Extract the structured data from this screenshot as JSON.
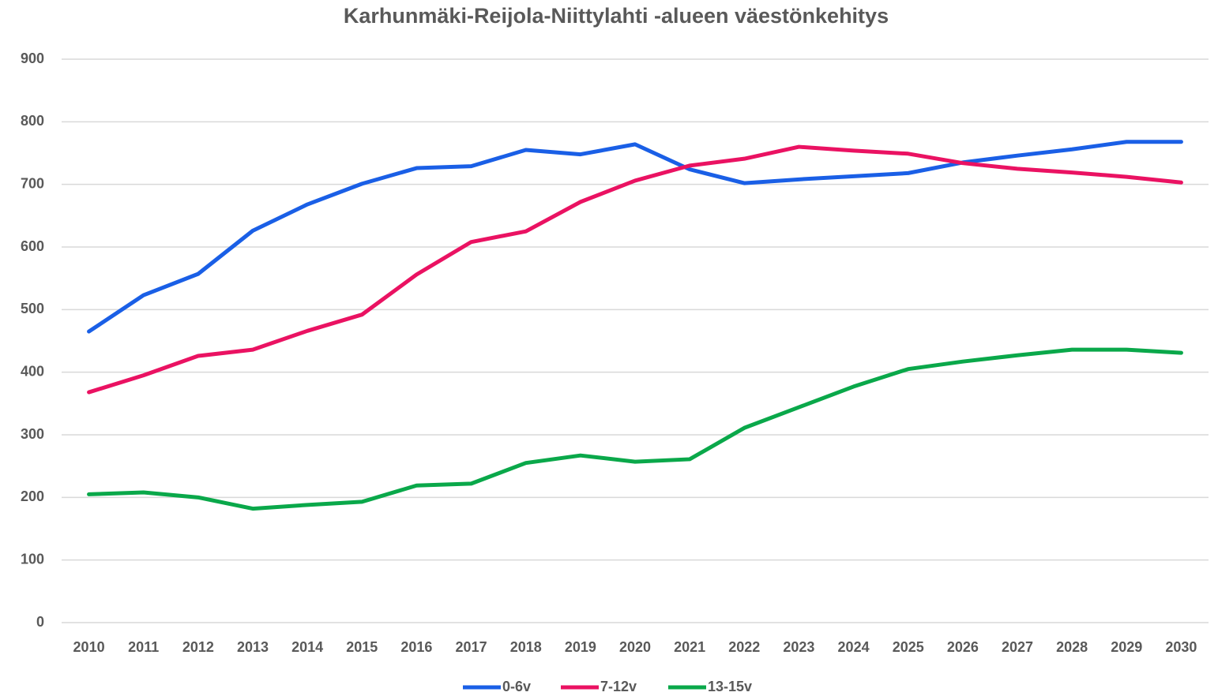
{
  "chart_data": {
    "type": "line",
    "title": "Karhunmäki-Reijola-Niittylahti -alueen väestönkehitys",
    "categories": [
      "2010",
      "2011",
      "2012",
      "2013",
      "2014",
      "2015",
      "2016",
      "2017",
      "2018",
      "2019",
      "2020",
      "2021",
      "2022",
      "2023",
      "2024",
      "2025",
      "2026",
      "2027",
      "2028",
      "2029",
      "2030"
    ],
    "series": [
      {
        "name": "0-6v",
        "color": "#1a5fe6",
        "values": [
          465,
          523,
          557,
          626,
          668,
          701,
          726,
          729,
          755,
          748,
          764,
          724,
          702,
          708,
          713,
          718,
          735,
          746,
          756,
          768,
          768
        ]
      },
      {
        "name": "7-12v",
        "color": "#ea1262",
        "values": [
          368,
          395,
          426,
          436,
          466,
          492,
          556,
          608,
          625,
          672,
          706,
          730,
          741,
          760,
          754,
          749,
          734,
          725,
          719,
          712,
          703
        ]
      },
      {
        "name": "13-15v",
        "color": "#0aa84a",
        "values": [
          205,
          208,
          200,
          182,
          188,
          193,
          219,
          222,
          255,
          267,
          257,
          261,
          311,
          344,
          377,
          405,
          417,
          427,
          436,
          436,
          431
        ]
      }
    ],
    "ylim": [
      0,
      900
    ],
    "yticks": [
      0,
      100,
      200,
      300,
      400,
      500,
      600,
      700,
      800,
      900
    ],
    "grid": true,
    "legend": "bottom"
  }
}
